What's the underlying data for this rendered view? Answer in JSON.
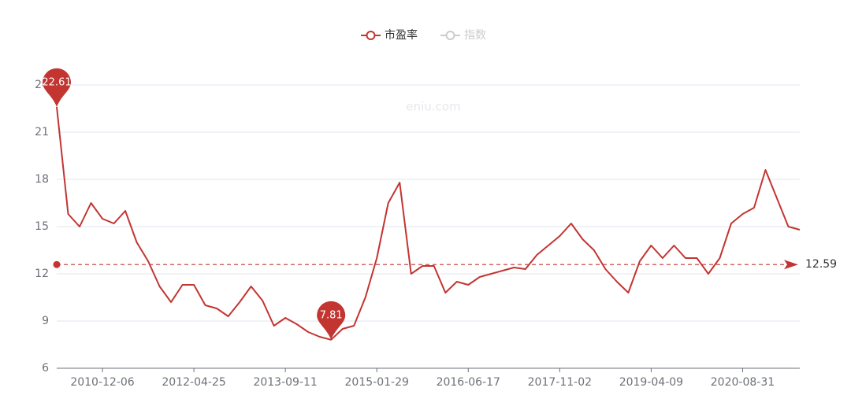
{
  "chart_data": {
    "type": "line",
    "legend": [
      {
        "name": "市盈率",
        "color": "#c23531"
      },
      {
        "name": "指数",
        "color": "#cccccc"
      }
    ],
    "watermark": "eniu.com",
    "categories": [
      null,
      null,
      null,
      null,
      "2010-12-06",
      null,
      null,
      null,
      null,
      null,
      null,
      null,
      "2012-04-25",
      null,
      null,
      null,
      null,
      null,
      null,
      null,
      "2013-09-11",
      null,
      null,
      null,
      null,
      null,
      null,
      null,
      "2015-01-29",
      null,
      null,
      null,
      null,
      null,
      null,
      null,
      "2016-06-17",
      null,
      null,
      null,
      null,
      null,
      null,
      null,
      "2017-11-02",
      null,
      null,
      null,
      null,
      null,
      null,
      null,
      "2019-04-09",
      null,
      null,
      null,
      null,
      null,
      null,
      null,
      "2020-08-31",
      null,
      null,
      null,
      null,
      null
    ],
    "series": [
      {
        "name": "市盈率",
        "color": "#c23531",
        "values": [
          22.61,
          15.8,
          15.0,
          16.5,
          15.5,
          15.2,
          16.0,
          14.0,
          12.8,
          11.2,
          10.2,
          11.3,
          11.3,
          10.0,
          9.8,
          9.3,
          10.2,
          11.2,
          10.3,
          8.7,
          9.2,
          8.8,
          8.3,
          8.0,
          7.81,
          8.5,
          8.7,
          10.5,
          13.0,
          16.5,
          17.8,
          12.0,
          12.5,
          12.5,
          10.8,
          11.5,
          11.3,
          11.8,
          12.0,
          12.2,
          12.4,
          12.3,
          13.2,
          13.8,
          14.4,
          15.2,
          14.2,
          13.5,
          12.3,
          11.5,
          10.8,
          12.8,
          13.8,
          13.0,
          13.8,
          13.0,
          13.0,
          12.0,
          13.0,
          15.2,
          15.8,
          16.2,
          18.6,
          16.8,
          15.0,
          14.8
        ]
      }
    ],
    "max": 22.61,
    "min": 7.81,
    "average": 12.59,
    "ylim": [
      6,
      24
    ],
    "yticks": [
      6,
      9,
      12,
      15,
      18,
      21,
      24
    ],
    "grid": true
  }
}
